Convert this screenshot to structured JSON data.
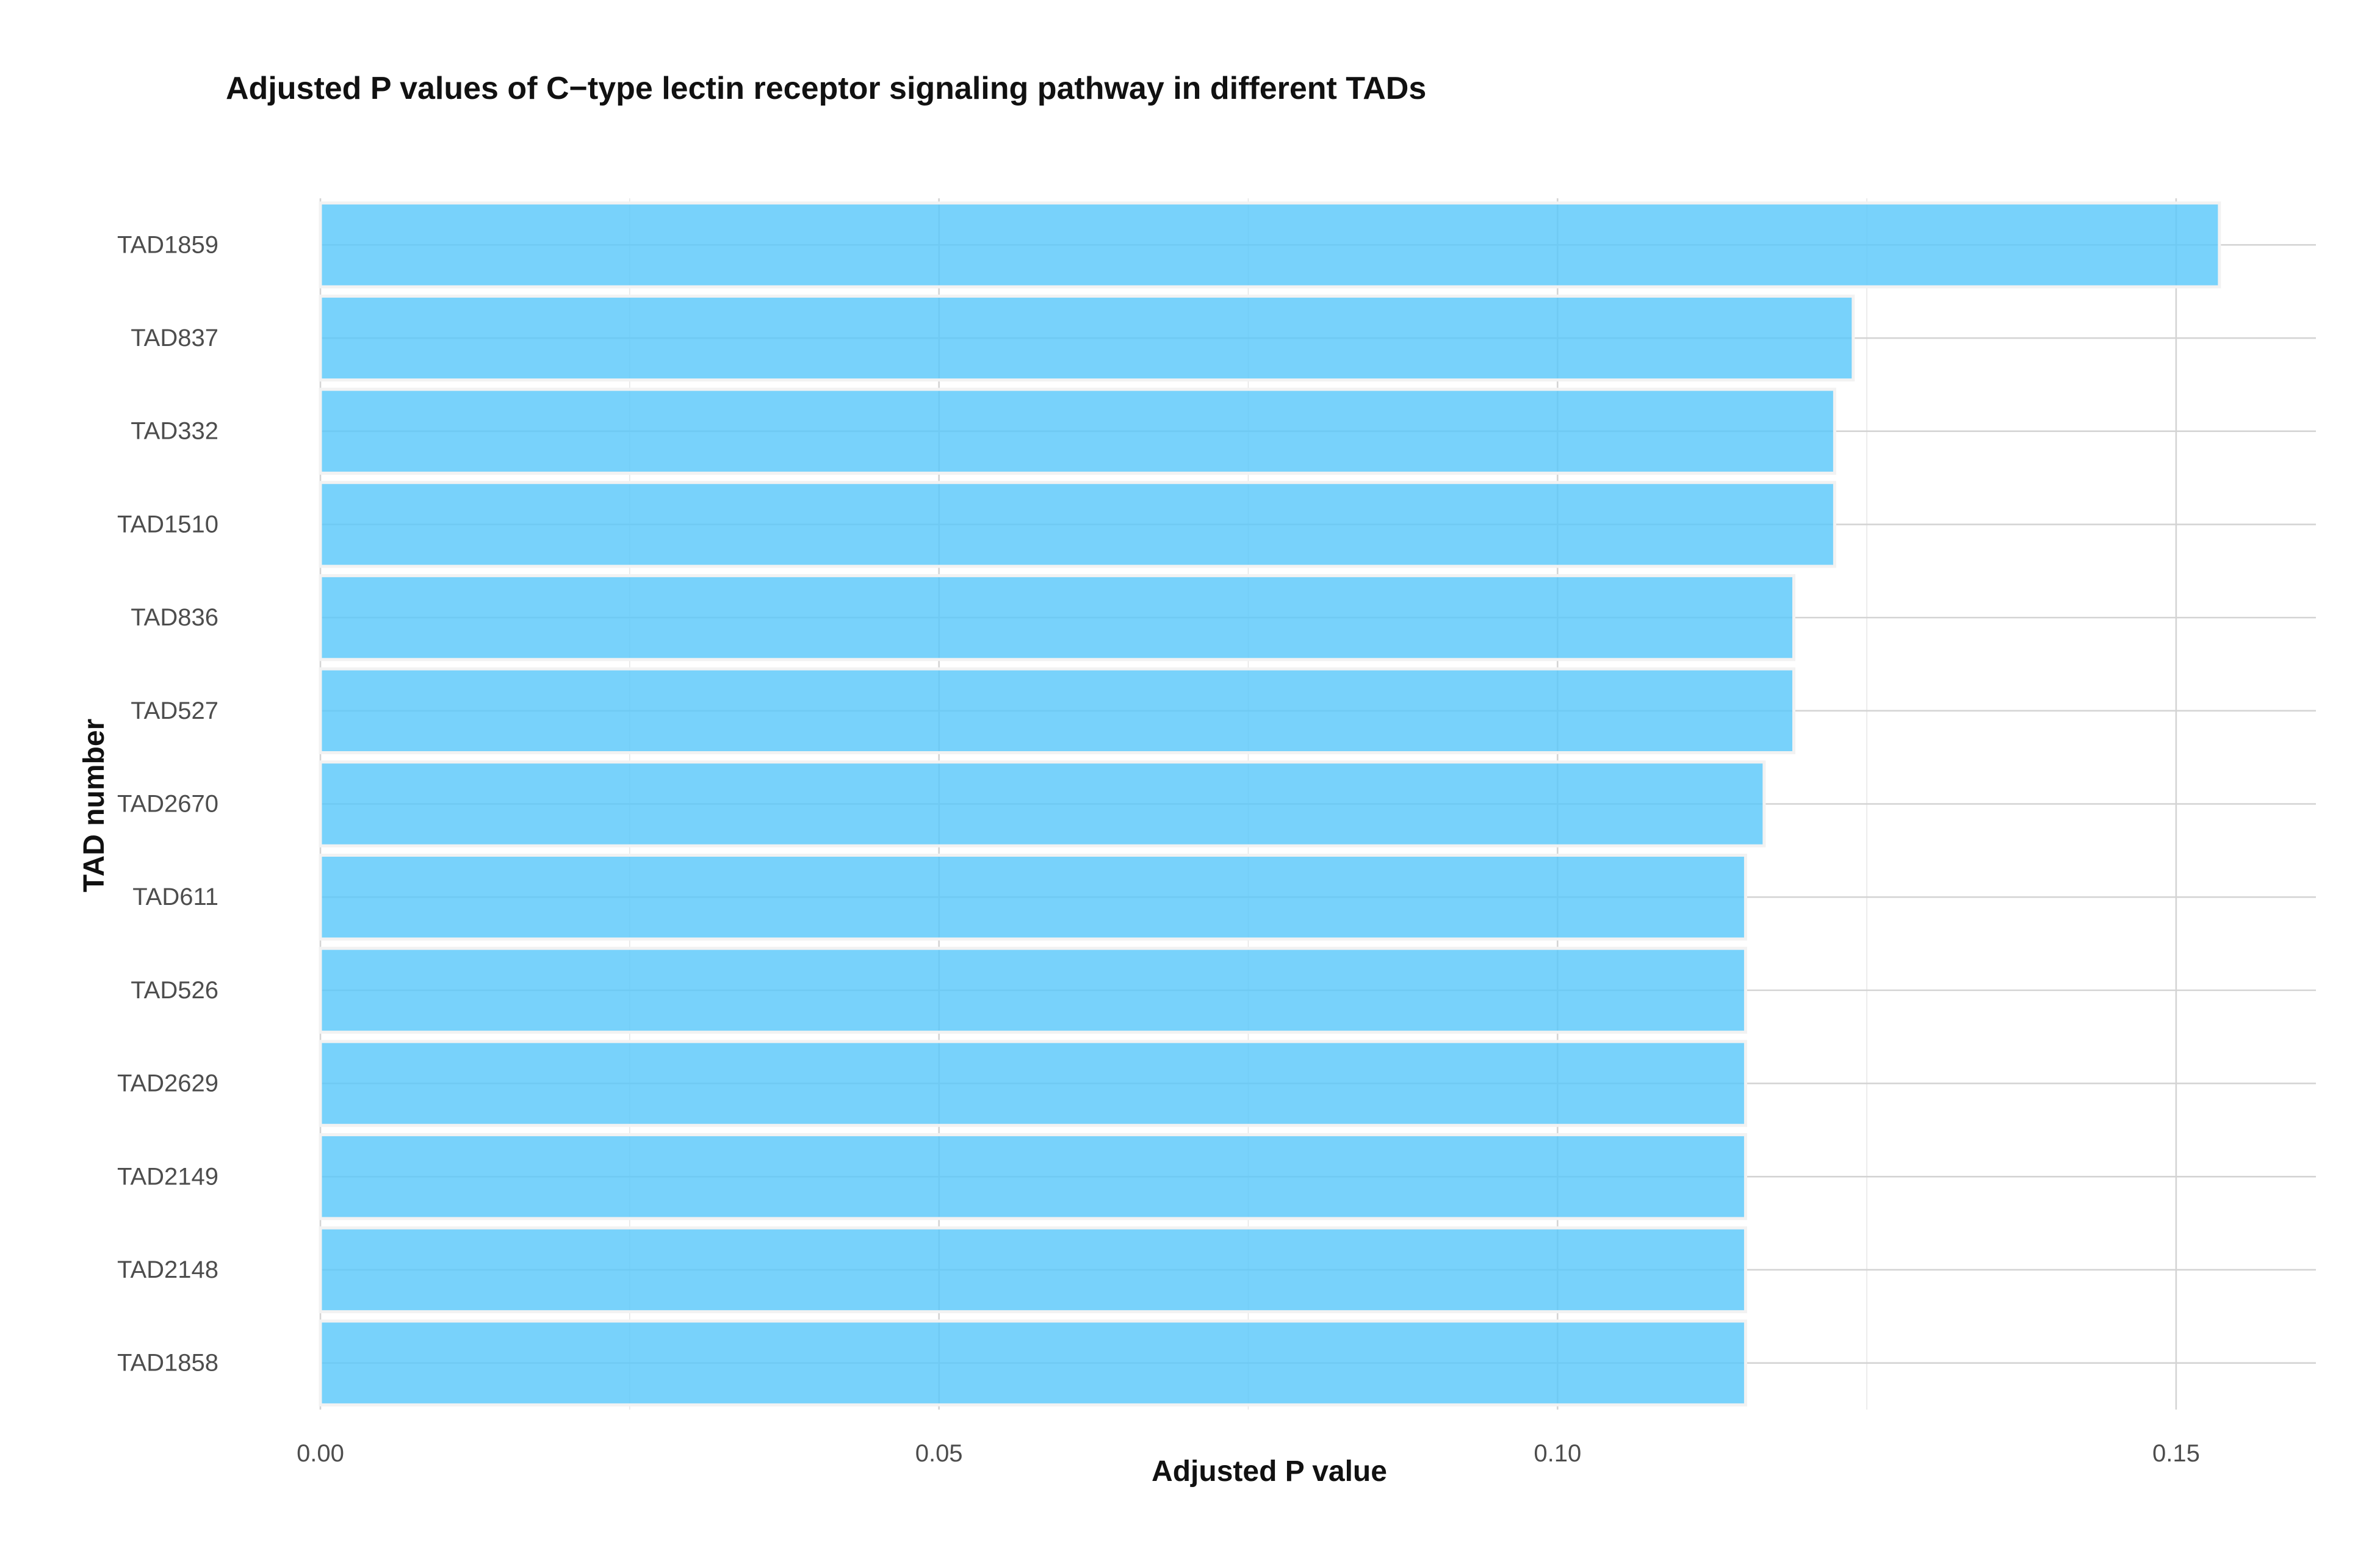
{
  "chart_data": {
    "type": "bar",
    "orientation": "horizontal",
    "title": "Adjusted P values of C−type lectin receptor signaling pathway in different TADs",
    "xlabel": "Adjusted P value",
    "ylabel": "TAD number",
    "categories": [
      "TAD1859",
      "TAD837",
      "TAD332",
      "TAD1510",
      "TAD836",
      "TAD527",
      "TAD2670",
      "TAD611",
      "TAD526",
      "TAD2629",
      "TAD2149",
      "TAD2148",
      "TAD1858"
    ],
    "values": [
      0.1535,
      0.1239,
      0.1224,
      0.1224,
      0.1191,
      0.1191,
      0.1167,
      0.1152,
      0.1152,
      0.1152,
      0.1152,
      0.1152,
      0.1152
    ],
    "xlim": [
      0,
      0.1613
    ],
    "x_ticks": [
      0,
      0.05,
      0.1,
      0.15
    ],
    "x_tick_labels": [
      "0.00",
      "0.05",
      "0.10",
      "0.15"
    ],
    "grid": true,
    "legend": "none",
    "colors": {
      "bar_fill": "#5ac8fa",
      "bar_outline": "#f2f2f2"
    }
  }
}
